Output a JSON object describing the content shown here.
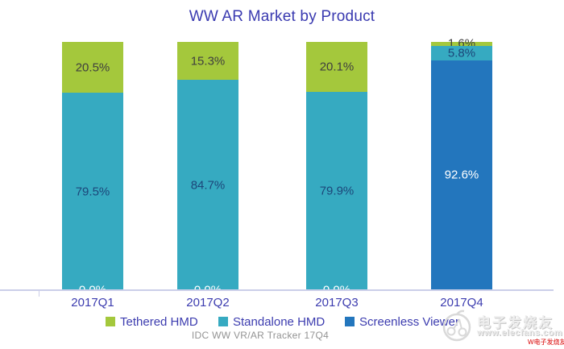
{
  "header": {
    "title": "WW AR Market by Product"
  },
  "caption": "IDC WW VR/AR Tracker 17Q4",
  "colors": {
    "tethered_hmd": "#a4c83c",
    "standalone_hmd": "#36aac1",
    "screenless_viewer": "#2376bd",
    "title_text": "#3a3ab0",
    "axis_labels": "#3c3caf",
    "axis_line": "#cbcee9",
    "caption_text": "#939393",
    "label_on_green": "#3f3f3f",
    "label_on_teal": "#1c4679",
    "label_on_blue": "#ffffff"
  },
  "chart_data": {
    "type": "bar",
    "stacked": true,
    "percent_stacked": true,
    "title": "WW AR Market by Product",
    "categories": [
      "2017Q1",
      "2017Q2",
      "2017Q3",
      "2017Q4"
    ],
    "series": [
      {
        "name": "Tethered HMD",
        "color": "#a4c83c",
        "label_color": "#3f3f3f",
        "values": [
          20.5,
          15.3,
          20.1,
          1.6
        ]
      },
      {
        "name": "Standalone HMD",
        "color": "#36aac1",
        "label_color": "#1c4679",
        "values": [
          79.5,
          84.7,
          79.9,
          5.8
        ]
      },
      {
        "name": "Screenless Viewer",
        "color": "#2376bd",
        "label_color": "#ffffff",
        "values": [
          0.0,
          0.0,
          0.0,
          92.6
        ]
      }
    ],
    "value_labels": [
      [
        "20.5%",
        "79.5%",
        "0.0%"
      ],
      [
        "15.3%",
        "84.7%",
        "0.0%"
      ],
      [
        "20.1%",
        "79.9%",
        "0.0%"
      ],
      [
        "1.6%",
        "5.8%",
        "92.6%"
      ]
    ],
    "unit": "%",
    "ylim": [
      0,
      100
    ],
    "gridlines": false,
    "legend_position": "bottom",
    "stack_order_top_to_bottom": [
      "Tethered HMD",
      "Standalone HMD",
      "Screenless Viewer"
    ]
  },
  "watermark": {
    "brand_cn": "电子发烧友",
    "brand_url": "www.elecfans.com",
    "badge": "W电子发烧友"
  }
}
